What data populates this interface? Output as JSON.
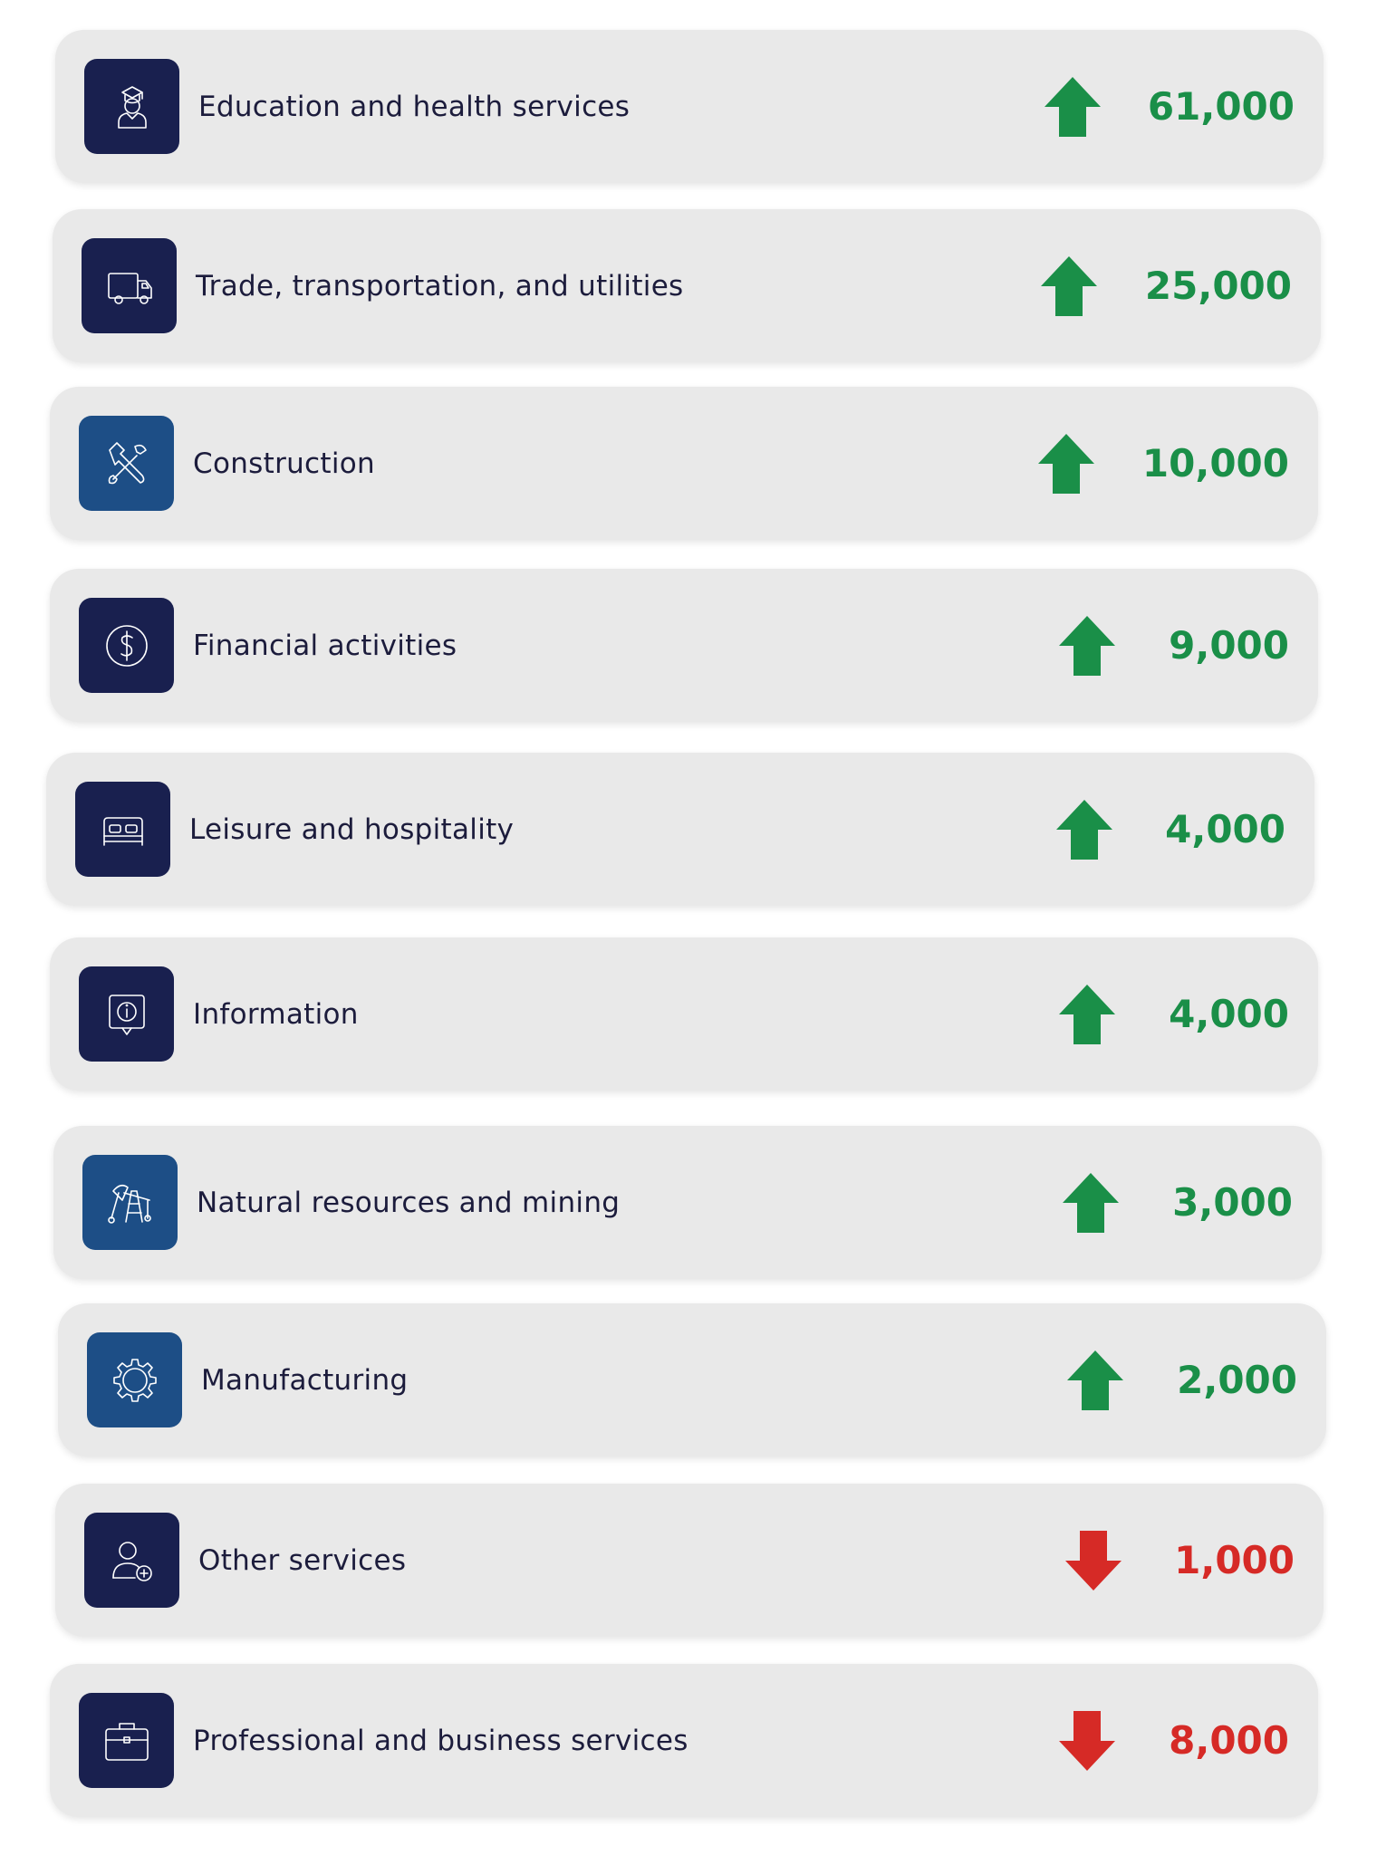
{
  "rows": [
    {
      "label": "Education and health services",
      "value": "61,000",
      "direction": "up",
      "icon": "graduate-person-icon",
      "icon_bg": "#19204f"
    },
    {
      "label": "Trade, transportation, and utilities",
      "value": "25,000",
      "direction": "up",
      "icon": "delivery-truck-icon",
      "icon_bg": "#19204f"
    },
    {
      "label": "Construction",
      "value": "10,000",
      "direction": "up",
      "icon": "wrench-hammer-icon",
      "icon_bg": "#1d4e86"
    },
    {
      "label": "Financial activities",
      "value": "9,000",
      "direction": "up",
      "icon": "dollar-coin-icon",
      "icon_bg": "#19204f"
    },
    {
      "label": "Leisure and hospitality",
      "value": "4,000",
      "direction": "up",
      "icon": "bed-icon",
      "icon_bg": "#19204f"
    },
    {
      "label": "Information",
      "value": "4,000",
      "direction": "up",
      "icon": "info-bubble-icon",
      "icon_bg": "#19204f"
    },
    {
      "label": "Natural resources and mining",
      "value": "3,000",
      "direction": "up",
      "icon": "oil-rig-icon",
      "icon_bg": "#1d4e86"
    },
    {
      "label": "Manufacturing",
      "value": "2,000",
      "direction": "up",
      "icon": "gear-icon",
      "icon_bg": "#1d4e86"
    },
    {
      "label": "Other services",
      "value": "1,000",
      "direction": "down",
      "icon": "person-add-icon",
      "icon_bg": "#19204f"
    },
    {
      "label": "Professional and business services",
      "value": "8,000",
      "direction": "down",
      "icon": "briefcase-icon",
      "icon_bg": "#19204f"
    }
  ],
  "colors": {
    "up": "#1a8f48",
    "down": "#d62a26"
  }
}
